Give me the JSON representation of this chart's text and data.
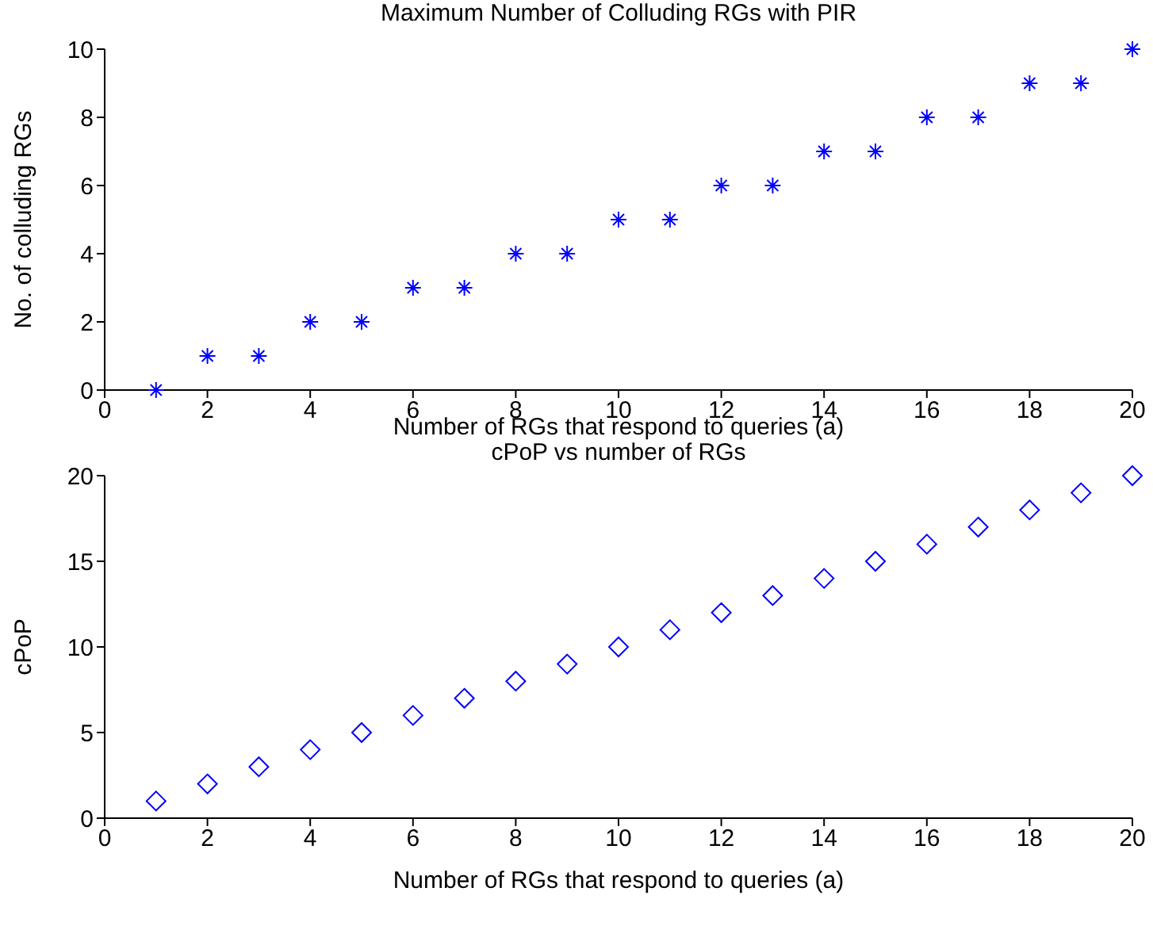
{
  "chart_data": [
    {
      "type": "scatter",
      "title": "Maximum Number of Colluding RGs with PIR",
      "xlabel": "Number of RGs that respond to queries (a)",
      "ylabel": "No. of colluding RGs",
      "x": [
        1,
        2,
        3,
        4,
        5,
        6,
        7,
        8,
        9,
        10,
        11,
        12,
        13,
        14,
        15,
        16,
        17,
        18,
        19,
        20
      ],
      "values": [
        0,
        1,
        1,
        2,
        2,
        3,
        3,
        4,
        4,
        5,
        5,
        6,
        6,
        7,
        7,
        8,
        8,
        9,
        9,
        10
      ],
      "color": "#0000ff",
      "marker": "cross",
      "xlim": [
        0,
        20
      ],
      "xticks": [
        0,
        2,
        4,
        6,
        8,
        10,
        12,
        14,
        16,
        18,
        20
      ],
      "ylim": [
        0,
        10
      ],
      "yticks": [
        0,
        2,
        4,
        6,
        8,
        10
      ],
      "grid": false,
      "legend": false
    },
    {
      "type": "scatter",
      "title": "cPoP vs number of RGs",
      "xlabel": "Number of RGs that respond to queries (a)",
      "ylabel": "cPoP",
      "x": [
        1,
        2,
        3,
        4,
        5,
        6,
        7,
        8,
        9,
        10,
        11,
        12,
        13,
        14,
        15,
        16,
        17,
        18,
        19,
        20
      ],
      "values": [
        1,
        2,
        3,
        4,
        5,
        6,
        7,
        8,
        9,
        10,
        11,
        12,
        13,
        14,
        15,
        16,
        17,
        18,
        19,
        20
      ],
      "color": "#0000ff",
      "marker": "diamond",
      "xlim": [
        0,
        20
      ],
      "xticks": [
        0,
        2,
        4,
        6,
        8,
        10,
        12,
        14,
        16,
        18,
        20
      ],
      "ylim": [
        0,
        20
      ],
      "yticks": [
        0,
        5,
        10,
        15,
        20
      ],
      "grid": false,
      "legend": false
    }
  ]
}
